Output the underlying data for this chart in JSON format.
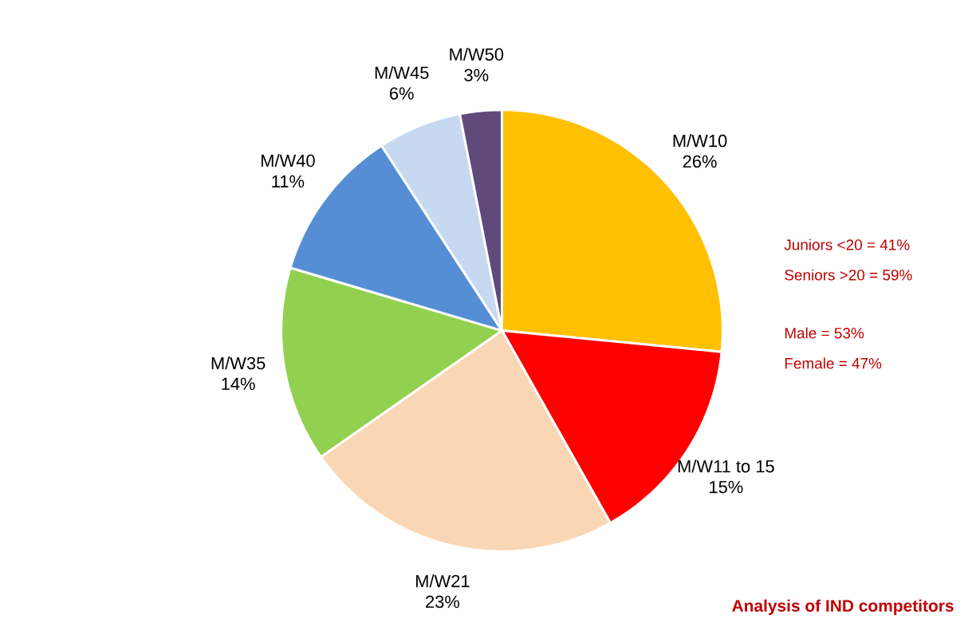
{
  "chart_data": {
    "type": "pie",
    "title": "Analysis of IND competitors",
    "categories": [
      "M/W10",
      "M/W11 to 15",
      "M/W21",
      "M/W35",
      "M/W40",
      "M/W45",
      "M/W50"
    ],
    "values": [
      26,
      15,
      23,
      14,
      11,
      6,
      3
    ],
    "value_labels": [
      "26%",
      "15%",
      "23%",
      "14%",
      "11%",
      "6%",
      "3%"
    ],
    "colors": [
      "#ffc000",
      "#ff0000",
      "#fad7b4",
      "#92d050",
      "#558ed5",
      "#c6d9f1",
      "#604a7b"
    ],
    "annotations": [
      "Juniors <20 = 41%",
      "Seniors >20 = 59%",
      "Male = 53%",
      "Female = 47%"
    ]
  }
}
